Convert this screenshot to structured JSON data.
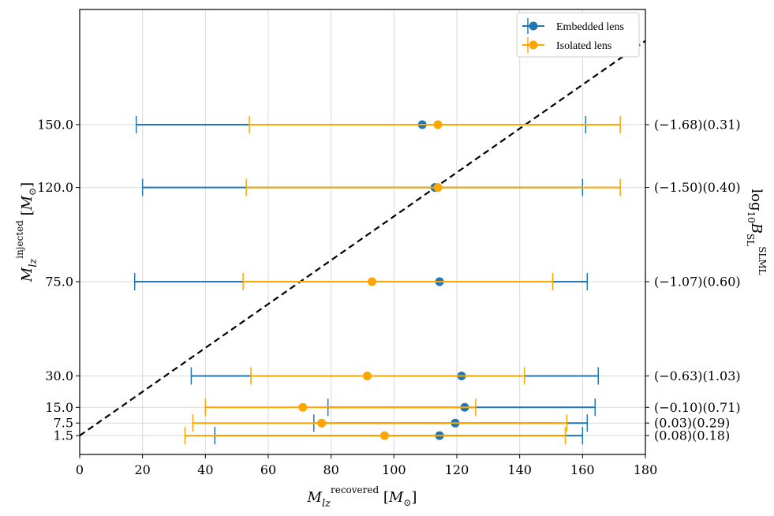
{
  "chart_data": {
    "type": "errorbar",
    "xlabel": "M_lz^recovered [M_⊙]",
    "ylabel": "M_lz^injected [M_⊙]",
    "right_ylabel": "log10 B_SL^SLML",
    "xlim": [
      0,
      180
    ],
    "ylim": [
      -7.5,
      205
    ],
    "xticks": [
      0,
      20,
      40,
      60,
      80,
      100,
      120,
      140,
      160,
      180
    ],
    "yticks": [
      "1.5",
      "7.5",
      "15.0",
      "30.0",
      "75.0",
      "120.0",
      "150.0"
    ],
    "ytick_values": [
      1.5,
      7.5,
      15.0,
      30.0,
      75.0,
      120.0,
      150.0
    ],
    "right_tick_labels": [
      "(0.08)(0.18)",
      "(0.03)(0.29)",
      "(−0.10)(0.71)",
      "(−0.63)(1.03)",
      "(−1.07)(0.60)",
      "(−1.50)(0.40)",
      "(−1.68)(0.31)"
    ],
    "diagonal": {
      "style": "dashed",
      "color": "#000000",
      "from": [
        0,
        1.5
      ],
      "to": [
        180,
        190
      ]
    },
    "grid": true,
    "legend": {
      "position": "top-right",
      "entries": [
        "Embedded lens",
        "Isolated lens"
      ]
    },
    "series": [
      {
        "name": "Embedded lens",
        "color": "#1f77b4",
        "points": [
          {
            "y": 1.5,
            "x": 114.5,
            "low": 43,
            "high": 160
          },
          {
            "y": 7.5,
            "x": 119.5,
            "low": 74.5,
            "high": 161.5
          },
          {
            "y": 15.0,
            "x": 122.5,
            "low": 79,
            "high": 164
          },
          {
            "y": 30.0,
            "x": 121.5,
            "low": 35.5,
            "high": 165
          },
          {
            "y": 75.0,
            "x": 114.5,
            "low": 17.5,
            "high": 161.5
          },
          {
            "y": 120.0,
            "x": 113.0,
            "low": 20,
            "high": 160
          },
          {
            "y": 150.0,
            "x": 109.0,
            "low": 18,
            "high": 161
          }
        ]
      },
      {
        "name": "Isolated lens",
        "color": "#ffa500",
        "points": [
          {
            "y": 1.5,
            "x": 97,
            "low": 33.5,
            "high": 154.5
          },
          {
            "y": 7.5,
            "x": 77,
            "low": 36,
            "high": 155
          },
          {
            "y": 15.0,
            "x": 71,
            "low": 40,
            "high": 126
          },
          {
            "y": 30.0,
            "x": 91.5,
            "low": 54.5,
            "high": 141.5
          },
          {
            "y": 75.0,
            "x": 93,
            "low": 52,
            "high": 150.5
          },
          {
            "y": 120.0,
            "x": 114.0,
            "low": 53,
            "high": 172
          },
          {
            "y": 150.0,
            "x": 114.0,
            "low": 54,
            "high": 172
          }
        ]
      }
    ]
  }
}
